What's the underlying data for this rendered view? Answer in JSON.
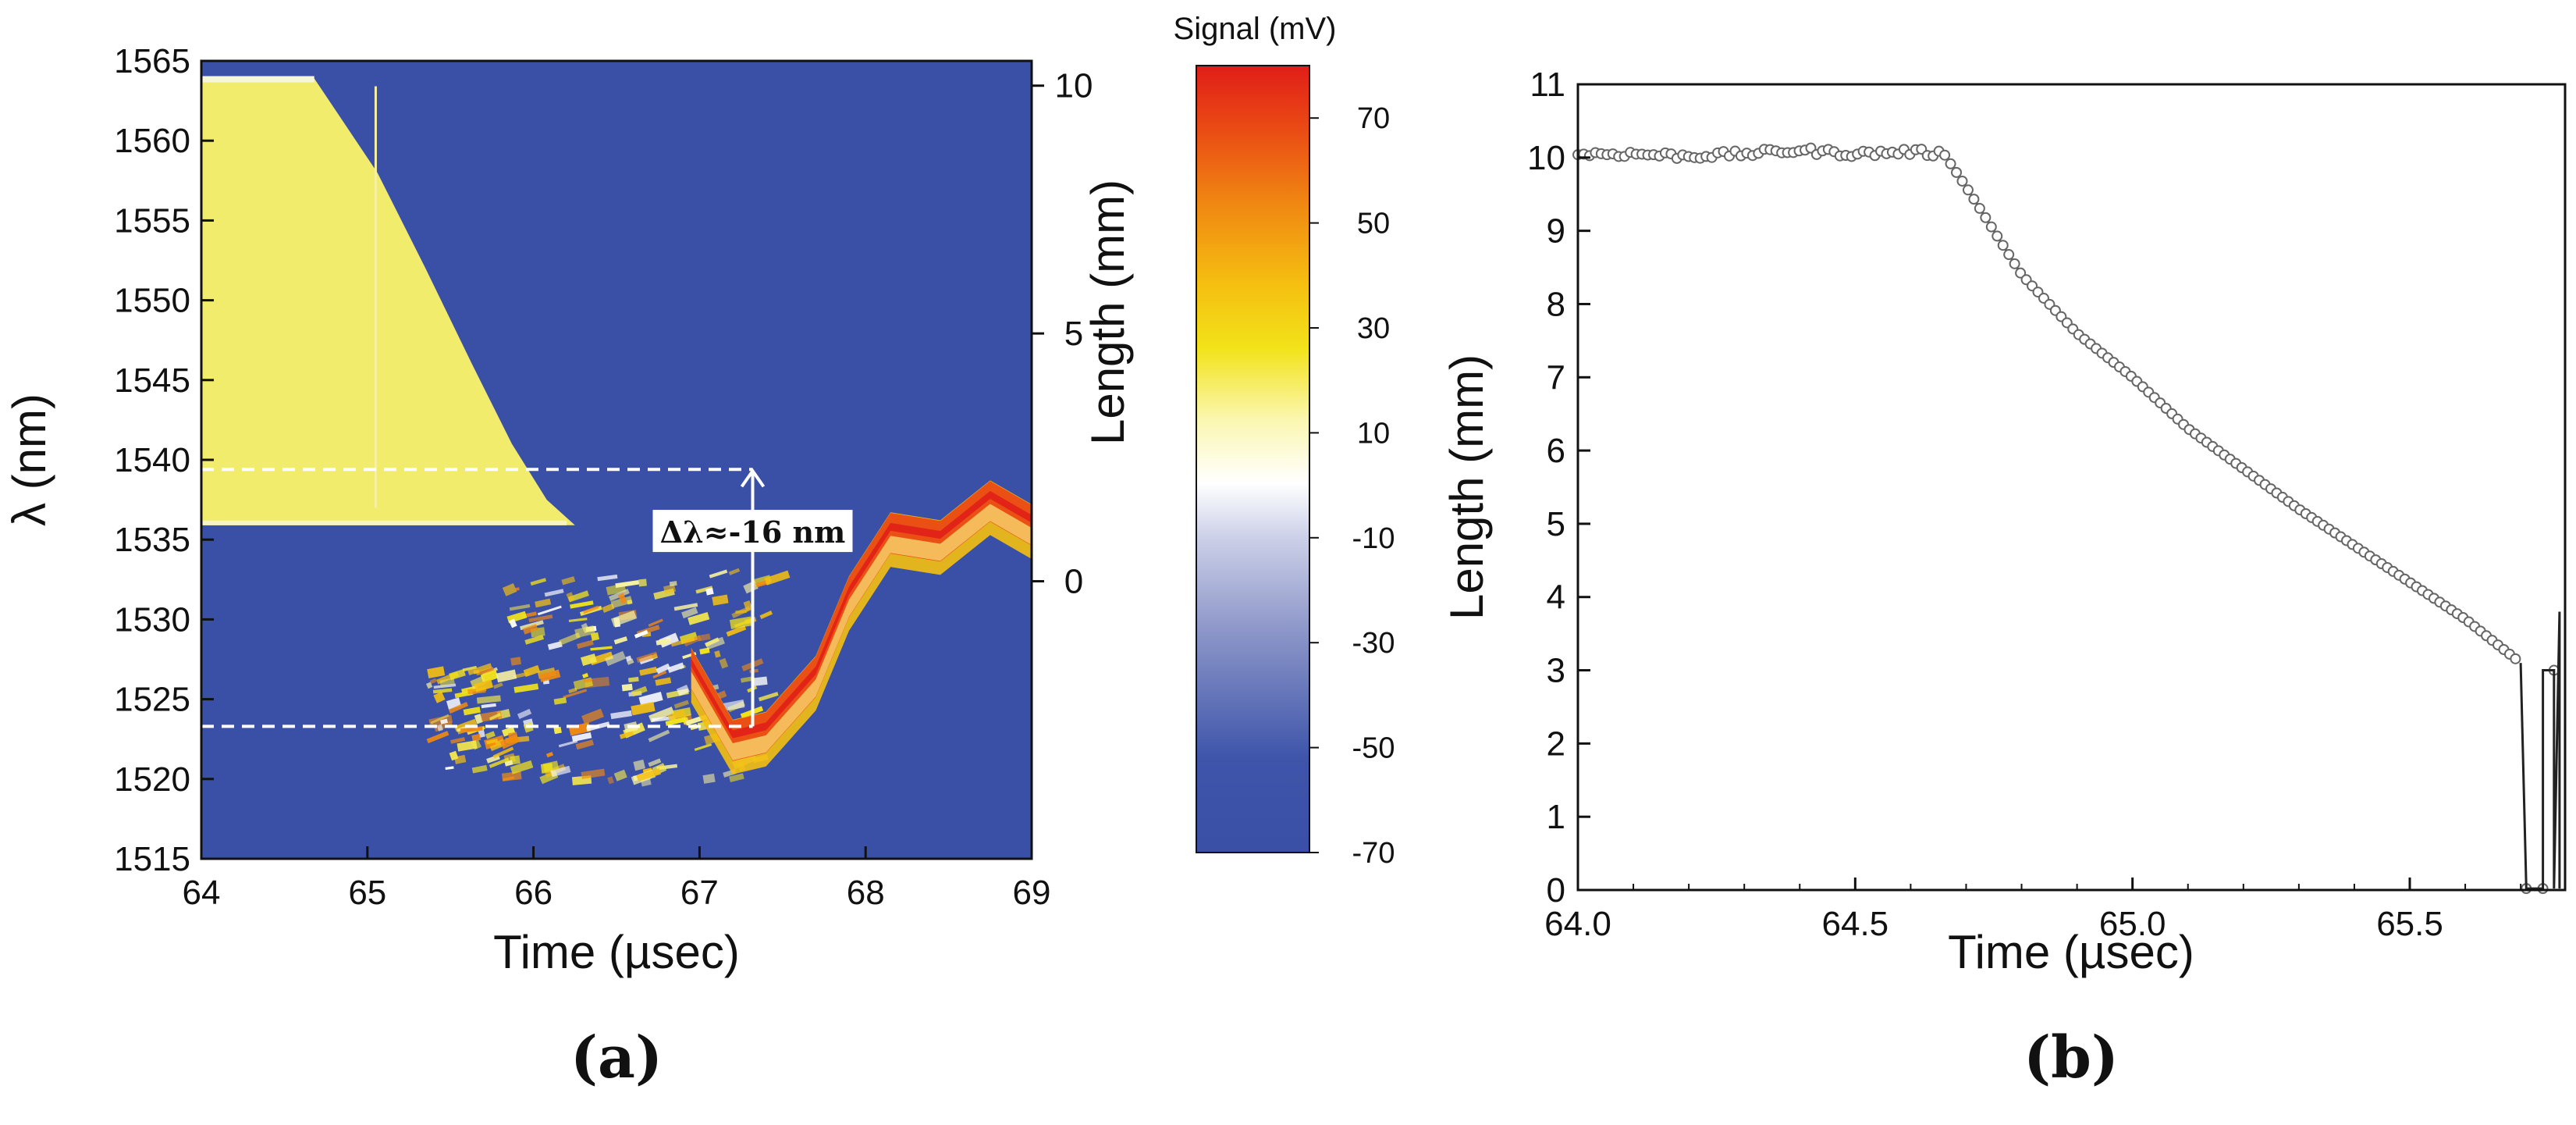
{
  "chart_data": [
    {
      "type": "heatmap",
      "panel_label": "(a)",
      "xlabel": "Time (µsec)",
      "ylabel": "λ (nm)",
      "y2label": "Length (mm)",
      "xlim": [
        64,
        69
      ],
      "ylim": [
        1515,
        1565
      ],
      "y2lim": [
        -5.6,
        10.5
      ],
      "xticks": [
        "64",
        "65",
        "66",
        "67",
        "68",
        "69"
      ],
      "yticks": [
        "1515",
        "1520",
        "1525",
        "1530",
        "1535",
        "1540",
        "1545",
        "1550",
        "1555",
        "1560",
        "1565"
      ],
      "y2ticks": [
        "0",
        "5",
        "10"
      ],
      "colorbar": {
        "label": "Signal (mV)",
        "range": [
          -70,
          80
        ],
        "ticks": [
          "70",
          "50",
          "30",
          "10",
          "-10",
          "-30",
          "-50",
          "-70"
        ]
      },
      "annotation": {
        "text": "Δλ≈-16 nm",
        "from_nm": 1523.3,
        "to_nm": 1539.4,
        "at_time": 67.32
      },
      "dashed_levels_nm": [
        1539.4,
        1523.3
      ],
      "grating_region": {
        "lambda_range": [
          1535.9,
          1563.9
        ],
        "edge_time": [
          [
            1563.9,
            64.68
          ],
          [
            1558,
            65.06
          ],
          [
            1552,
            65.35
          ],
          [
            1546,
            65.63
          ],
          [
            1541,
            65.87
          ],
          [
            1537.5,
            66.08
          ],
          [
            1535.9,
            66.25
          ]
        ]
      },
      "shifted_band": {
        "center_nm": [
          [
            66.95,
            1526.5
          ],
          [
            67.2,
            1522
          ],
          [
            67.4,
            1522.5
          ],
          [
            67.7,
            1526
          ],
          [
            67.9,
            1531
          ],
          [
            68.15,
            1535
          ],
          [
            68.45,
            1534.5
          ],
          [
            68.75,
            1537
          ],
          [
            69,
            1535.5
          ]
        ]
      }
    },
    {
      "type": "scatter",
      "panel_label": "(b)",
      "xlabel": "Time (µsec)",
      "ylabel": "Length (mm)",
      "xlim": [
        64.0,
        65.78
      ],
      "ylim": [
        0,
        11
      ],
      "xticks": [
        "64.0",
        "64.5",
        "65.0",
        "65.5"
      ],
      "yticks": [
        "0",
        "1",
        "2",
        "3",
        "4",
        "5",
        "6",
        "7",
        "8",
        "9",
        "10",
        "11"
      ],
      "series": [
        {
          "name": "Length",
          "x": [
            64.0,
            64.1,
            64.2,
            64.3,
            64.4,
            64.5,
            64.6,
            64.66,
            64.7,
            64.75,
            64.8,
            64.9,
            65.0,
            65.1,
            65.2,
            65.3,
            65.4,
            65.5,
            65.6,
            65.7
          ],
          "y": [
            10.05,
            10.05,
            10.02,
            10.05,
            10.1,
            10.05,
            10.08,
            10.05,
            9.6,
            9.0,
            8.4,
            7.6,
            7.0,
            6.3,
            5.75,
            5.2,
            4.7,
            4.2,
            3.7,
            3.1
          ]
        }
      ],
      "drops_x": [
        65.71,
        65.74,
        65.76,
        65.77
      ]
    }
  ]
}
